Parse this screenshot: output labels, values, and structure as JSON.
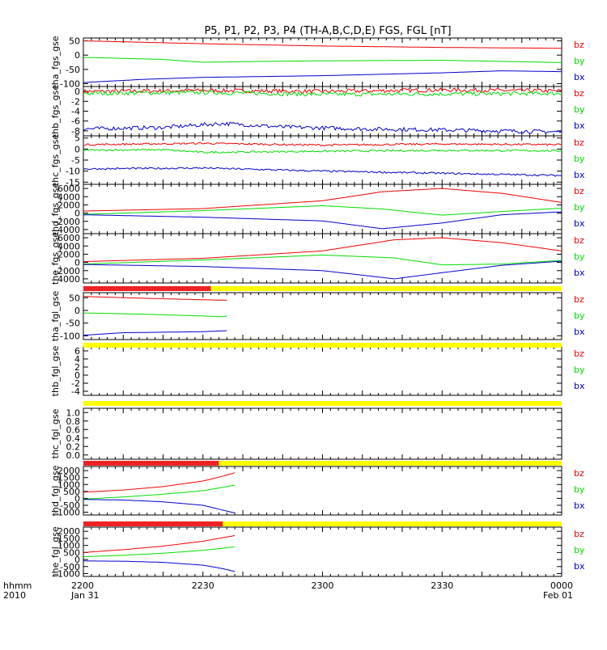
{
  "title": "P5, P1, P2, P3, P4 (TH-A,B,C,D,E) FGS, FGL [nT]",
  "xaxis": {
    "row_label": "hhmm",
    "year_label": "2010",
    "ticks": [
      {
        "label": "2200",
        "date": "Jan 31",
        "t": 0
      },
      {
        "label": "2230",
        "date": "",
        "t": 30
      },
      {
        "label": "2300",
        "date": "",
        "t": 60
      },
      {
        "label": "2330",
        "date": "",
        "t": 90
      },
      {
        "label": "0000",
        "date": "Feb 01",
        "t": 120
      }
    ],
    "range_minutes": [
      0,
      120
    ]
  },
  "colors": {
    "bz": "#ee0000",
    "by": "#00dd00",
    "bx": "#0000cc",
    "avail": "#ffff00",
    "gap": "#ee2222"
  },
  "chart_data": [
    {
      "type": "line",
      "ylabel": "tha_fgs_gse",
      "ylim": [
        -110,
        60
      ],
      "ticks": [
        "50",
        "0",
        "-50",
        "-100"
      ],
      "tick_values": [
        50,
        0,
        -50,
        -100
      ],
      "legend": [
        "bz",
        "by",
        "bx"
      ],
      "series": [
        {
          "name": "bz",
          "t": [
            0,
            30,
            60,
            90,
            120
          ],
          "v": [
            50,
            40,
            32,
            27,
            24
          ]
        },
        {
          "name": "by",
          "t": [
            0,
            20,
            30,
            45,
            60,
            90,
            120
          ],
          "v": [
            -8,
            -15,
            -25,
            -22,
            -20,
            -18,
            -26
          ]
        },
        {
          "name": "bx",
          "t": [
            0,
            15,
            30,
            60,
            90,
            105,
            120
          ],
          "v": [
            -96,
            -85,
            -78,
            -72,
            -62,
            -55,
            -58
          ]
        }
      ]
    },
    {
      "type": "line",
      "ylabel": "thb_fgs_gse",
      "ylim": [
        -9,
        1
      ],
      "ticks": [
        "0",
        "-2",
        "-4",
        "-6",
        "-8"
      ],
      "tick_values": [
        0,
        -2,
        -4,
        -6,
        -8
      ],
      "legend": [
        "bz",
        "by",
        "bx"
      ],
      "noise": 0.4,
      "series": [
        {
          "name": "bz",
          "t": [
            0,
            30,
            60,
            90,
            120
          ],
          "v": [
            0,
            0.2,
            0,
            0.3,
            0.1
          ]
        },
        {
          "name": "by",
          "t": [
            0,
            30,
            60,
            90,
            120
          ],
          "v": [
            -0.4,
            -0.2,
            -0.6,
            -0.5,
            -0.4
          ]
        },
        {
          "name": "bx",
          "t": [
            0,
            20,
            35,
            50,
            70,
            90,
            120
          ],
          "v": [
            -7.6,
            -7.3,
            -6.5,
            -7.2,
            -7.6,
            -7.8,
            -8.2
          ]
        }
      ]
    },
    {
      "type": "line",
      "ylabel": "thc_fgs_gse",
      "ylim": [
        -16,
        6
      ],
      "ticks": [
        "5",
        "0",
        "-5",
        "-10",
        "-15"
      ],
      "tick_values": [
        5,
        0,
        -5,
        -10,
        -15
      ],
      "legend": [
        "bz",
        "by",
        "bx"
      ],
      "noise": 0.4,
      "series": [
        {
          "name": "bz",
          "t": [
            0,
            30,
            60,
            90,
            120
          ],
          "v": [
            2,
            2.6,
            1.8,
            2.3,
            2
          ]
        },
        {
          "name": "by",
          "t": [
            0,
            20,
            30,
            60,
            90,
            120
          ],
          "v": [
            -0.5,
            -0.3,
            -1.5,
            -1,
            -0.6,
            -0.8
          ]
        },
        {
          "name": "bx",
          "t": [
            0,
            30,
            60,
            90,
            120
          ],
          "v": [
            -9,
            -8.6,
            -10,
            -11,
            -12
          ]
        }
      ]
    },
    {
      "type": "line",
      "ylabel": "thd_fgs_gse",
      "ylim": [
        -5000,
        7000
      ],
      "ticks": [
        "6000",
        "4000",
        "2000",
        "0",
        "-2000",
        "-4000"
      ],
      "tick_values": [
        6000,
        4000,
        2000,
        0,
        -2000,
        -4000
      ],
      "legend": [
        "bz",
        "by",
        "bx"
      ],
      "series": [
        {
          "name": "bz",
          "t": [
            0,
            30,
            60,
            75,
            90,
            105,
            120
          ],
          "v": [
            500,
            1100,
            3000,
            5200,
            6000,
            4800,
            2600
          ]
        },
        {
          "name": "by",
          "t": [
            0,
            30,
            60,
            75,
            90,
            105,
            120
          ],
          "v": [
            -300,
            600,
            1800,
            1000,
            -500,
            400,
            1200
          ]
        },
        {
          "name": "bx",
          "t": [
            0,
            30,
            60,
            75,
            90,
            105,
            120
          ],
          "v": [
            -400,
            -1000,
            -1900,
            -3800,
            -2400,
            -400,
            300
          ]
        }
      ]
    },
    {
      "type": "line",
      "ylabel": "the_fgs_gse",
      "ylim": [
        -5000,
        7000
      ],
      "ticks": [
        "6000",
        "4000",
        "2000",
        "0",
        "-2000",
        "-4000"
      ],
      "tick_values": [
        6000,
        4000,
        2000,
        0,
        -2000,
        -4000
      ],
      "legend": [
        "bz",
        "by",
        "bx"
      ],
      "series": [
        {
          "name": "bz",
          "t": [
            0,
            30,
            60,
            78,
            90,
            105,
            120
          ],
          "v": [
            200,
            1000,
            2800,
            5500,
            6000,
            4800,
            2800
          ]
        },
        {
          "name": "by",
          "t": [
            0,
            30,
            60,
            78,
            90,
            105,
            120
          ],
          "v": [
            -400,
            600,
            1800,
            1100,
            -600,
            -400,
            500
          ]
        },
        {
          "name": "bx",
          "t": [
            0,
            30,
            60,
            78,
            90,
            105,
            120
          ],
          "v": [
            -500,
            -1000,
            -2000,
            -4000,
            -2500,
            -700,
            300
          ]
        }
      ]
    },
    {
      "type": "line",
      "ylabel": "tha_fgl_gse",
      "ylim": [
        -115,
        70
      ],
      "ticks": [
        "50",
        "0",
        "-50",
        "-100"
      ],
      "tick_values": [
        50,
        0,
        -50,
        -100
      ],
      "legend": [
        "bz",
        "by",
        "bx"
      ],
      "series": [
        {
          "name": "bz",
          "t": [
            0,
            15,
            30,
            36
          ],
          "v": [
            55,
            48,
            42,
            40
          ]
        },
        {
          "name": "by",
          "t": [
            0,
            15,
            30,
            35,
            36
          ],
          "v": [
            -10,
            -15,
            -22,
            -25,
            -22
          ]
        },
        {
          "name": "bx",
          "t": [
            0,
            10,
            30,
            36
          ],
          "v": [
            -98,
            -88,
            -84,
            -80
          ]
        }
      ]
    },
    {
      "type": "line",
      "ylabel": "thb_fgl_gse",
      "ylim": [
        -5,
        7
      ],
      "ticks": [
        "6",
        "4",
        "2",
        "0",
        "-2",
        "-4"
      ],
      "tick_values": [
        6,
        4,
        2,
        0,
        -2,
        -4
      ],
      "legend": [
        "bz",
        "by",
        "bx"
      ],
      "series": []
    },
    {
      "type": "line",
      "ylabel": "thc_fgl_gse",
      "ylim": [
        -0.1,
        1.1
      ],
      "ticks": [
        "1.0",
        "0.8",
        "0.6",
        "0.4",
        "0.2",
        "0.0"
      ],
      "tick_values": [
        1.0,
        0.8,
        0.6,
        0.4,
        0.2,
        0.0
      ],
      "legend": [],
      "series": []
    },
    {
      "type": "line",
      "ylabel": "thd_fgl_gse",
      "ylim": [
        -1200,
        2300
      ],
      "ticks": [
        "2000",
        "1500",
        "1000",
        "500",
        "0",
        "-500",
        "-1000"
      ],
      "tick_values": [
        2000,
        1500,
        1000,
        500,
        0,
        -500,
        -1000
      ],
      "legend": [
        "bz",
        "by",
        "bx"
      ],
      "series": [
        {
          "name": "bz",
          "t": [
            0,
            10,
            20,
            30,
            35,
            38
          ],
          "v": [
            450,
            600,
            850,
            1250,
            1600,
            1850
          ]
        },
        {
          "name": "by",
          "t": [
            0,
            10,
            20,
            30,
            35,
            38
          ],
          "v": [
            -50,
            100,
            300,
            550,
            800,
            950
          ]
        },
        {
          "name": "bx",
          "t": [
            0,
            10,
            20,
            30,
            35,
            38
          ],
          "v": [
            -80,
            -120,
            -250,
            -500,
            -850,
            -1050
          ]
        }
      ]
    },
    {
      "type": "line",
      "ylabel": "the_fgl_gse",
      "ylim": [
        -1200,
        2300
      ],
      "ticks": [
        "2000",
        "1500",
        "1000",
        "500",
        "0",
        "-500",
        "-1000"
      ],
      "tick_values": [
        2000,
        1500,
        1000,
        500,
        0,
        -500,
        -1000
      ],
      "legend": [
        "bz",
        "by",
        "bx"
      ],
      "series": [
        {
          "name": "bz",
          "t": [
            0,
            10,
            20,
            30,
            35,
            38
          ],
          "v": [
            500,
            700,
            950,
            1300,
            1550,
            1700
          ]
        },
        {
          "name": "by",
          "t": [
            0,
            10,
            20,
            30,
            35,
            38
          ],
          "v": [
            200,
            300,
            450,
            650,
            800,
            900
          ]
        },
        {
          "name": "bx",
          "t": [
            0,
            10,
            20,
            30,
            35,
            38
          ],
          "v": [
            -100,
            -120,
            -200,
            -400,
            -650,
            -850
          ]
        }
      ]
    }
  ],
  "availability_bars": [
    {
      "after_panel": 4,
      "red_until_t": 32
    },
    {
      "after_panel": 5,
      "red_until_t": 0
    },
    {
      "after_panel": 6,
      "red_until_t": 0
    },
    {
      "after_panel": 7,
      "red_until_t": 34
    },
    {
      "after_panel": 8,
      "red_until_t": 35
    }
  ]
}
